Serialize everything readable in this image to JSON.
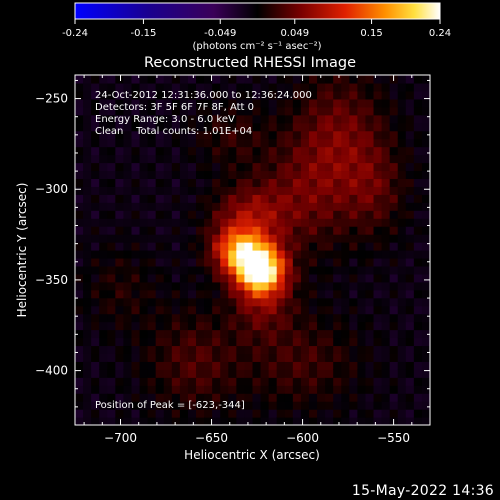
{
  "chart_data": {
    "type": "heatmap",
    "title": "Reconstructed RHESSI Image",
    "xlabel": "Heliocentric X (arcsec)",
    "ylabel": "Heliocentric Y (arcsec)",
    "xlim": [
      -725,
      -530
    ],
    "ylim": [
      -430,
      -237
    ],
    "xticks": [
      -700,
      -650,
      -600,
      -550
    ],
    "yticks": [
      -250,
      -300,
      -350,
      -400
    ],
    "colorbar": {
      "vmin": -0.24,
      "vmax": 0.24,
      "ticks": [
        {
          "v": -0.24,
          "label": "-0.24"
        },
        {
          "v": -0.15,
          "label": "-0.15"
        },
        {
          "v": -0.049,
          "label": "-0.049"
        },
        {
          "v": 0.049,
          "label": "0.049"
        },
        {
          "v": 0.15,
          "label": "0.15"
        },
        {
          "v": 0.24,
          "label": "0.24"
        }
      ],
      "unit_label": "(photons cm⁻² s⁻¹ asec⁻²)"
    },
    "annotations": [
      "24-Oct-2012 12:31:36.000 to 12:36:24.000",
      "Detectors: 3F 5F 6F 7F 8F, Att 0",
      "Energy Range: 3.0 - 6.0 keV",
      "Clean    Total counts: 1.01E+04"
    ],
    "peak_label": "Position of Peak = [-623,-344]",
    "peak": {
      "x": -623,
      "y": -344,
      "value": 0.24
    },
    "sources": [
      {
        "x": -623,
        "y": -344,
        "sx": 9,
        "sy": 9,
        "amp": 0.24
      },
      {
        "x": -635,
        "y": -334,
        "sx": 10,
        "sy": 9,
        "amp": 0.16
      },
      {
        "x": -630,
        "y": -315,
        "sx": 14,
        "sy": 12,
        "amp": 0.07
      },
      {
        "x": -622,
        "y": -360,
        "sx": 12,
        "sy": 14,
        "amp": 0.06
      },
      {
        "x": -600,
        "y": -305,
        "sx": 20,
        "sy": 22,
        "amp": 0.05
      },
      {
        "x": -580,
        "y": -270,
        "sx": 18,
        "sy": 24,
        "amp": 0.06
      },
      {
        "x": -560,
        "y": -300,
        "sx": 12,
        "sy": 18,
        "amp": 0.04
      },
      {
        "x": -660,
        "y": -395,
        "sx": 18,
        "sy": 20,
        "amp": 0.045
      },
      {
        "x": -600,
        "y": -395,
        "sx": 22,
        "sy": 18,
        "amp": 0.04
      },
      {
        "x": -700,
        "y": -355,
        "sx": 14,
        "sy": 16,
        "amp": 0.025
      },
      {
        "x": -640,
        "y": -270,
        "sx": 14,
        "sy": 12,
        "amp": 0.03
      }
    ],
    "grid": false,
    "colormap": "idl-3"
  },
  "footer": {
    "date": "15-May-2022 14:36"
  }
}
